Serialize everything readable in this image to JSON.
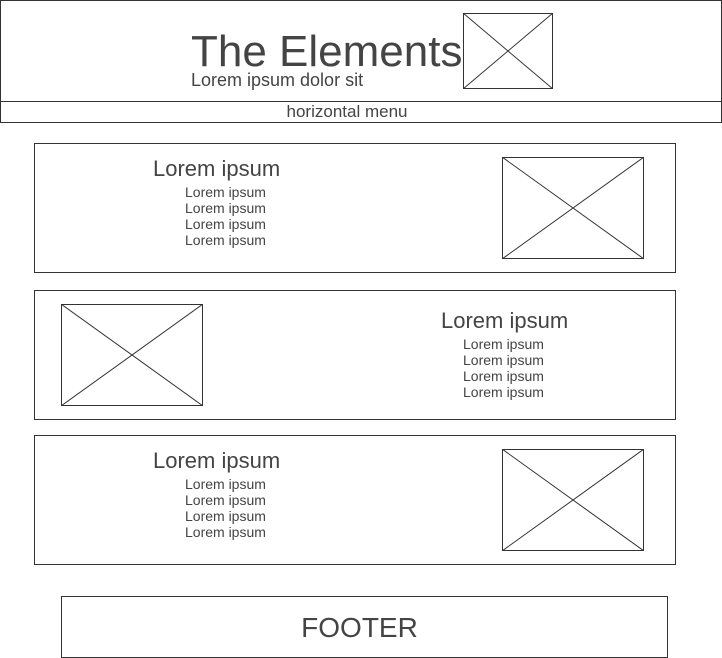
{
  "header": {
    "title": "The Elements",
    "subtitle": "Lorem ipsum dolor sit"
  },
  "menu": {
    "label": "horizontal menu"
  },
  "sections": [
    {
      "heading": "Lorem ipsum",
      "items": [
        "Lorem ipsum",
        "Lorem ipsum",
        "Lorem ipsum",
        "Lorem ipsum"
      ]
    },
    {
      "heading": "Lorem ipsum",
      "items": [
        "Lorem ipsum",
        "Lorem ipsum",
        "Lorem ipsum",
        "Lorem ipsum"
      ]
    },
    {
      "heading": "Lorem ipsum",
      "items": [
        "Lorem ipsum",
        "Lorem ipsum",
        "Lorem ipsum",
        "Lorem ipsum"
      ]
    }
  ],
  "footer": {
    "label": "FOOTER"
  },
  "colors": {
    "stroke": "#333333",
    "text": "#444444",
    "background": "#ffffff"
  }
}
